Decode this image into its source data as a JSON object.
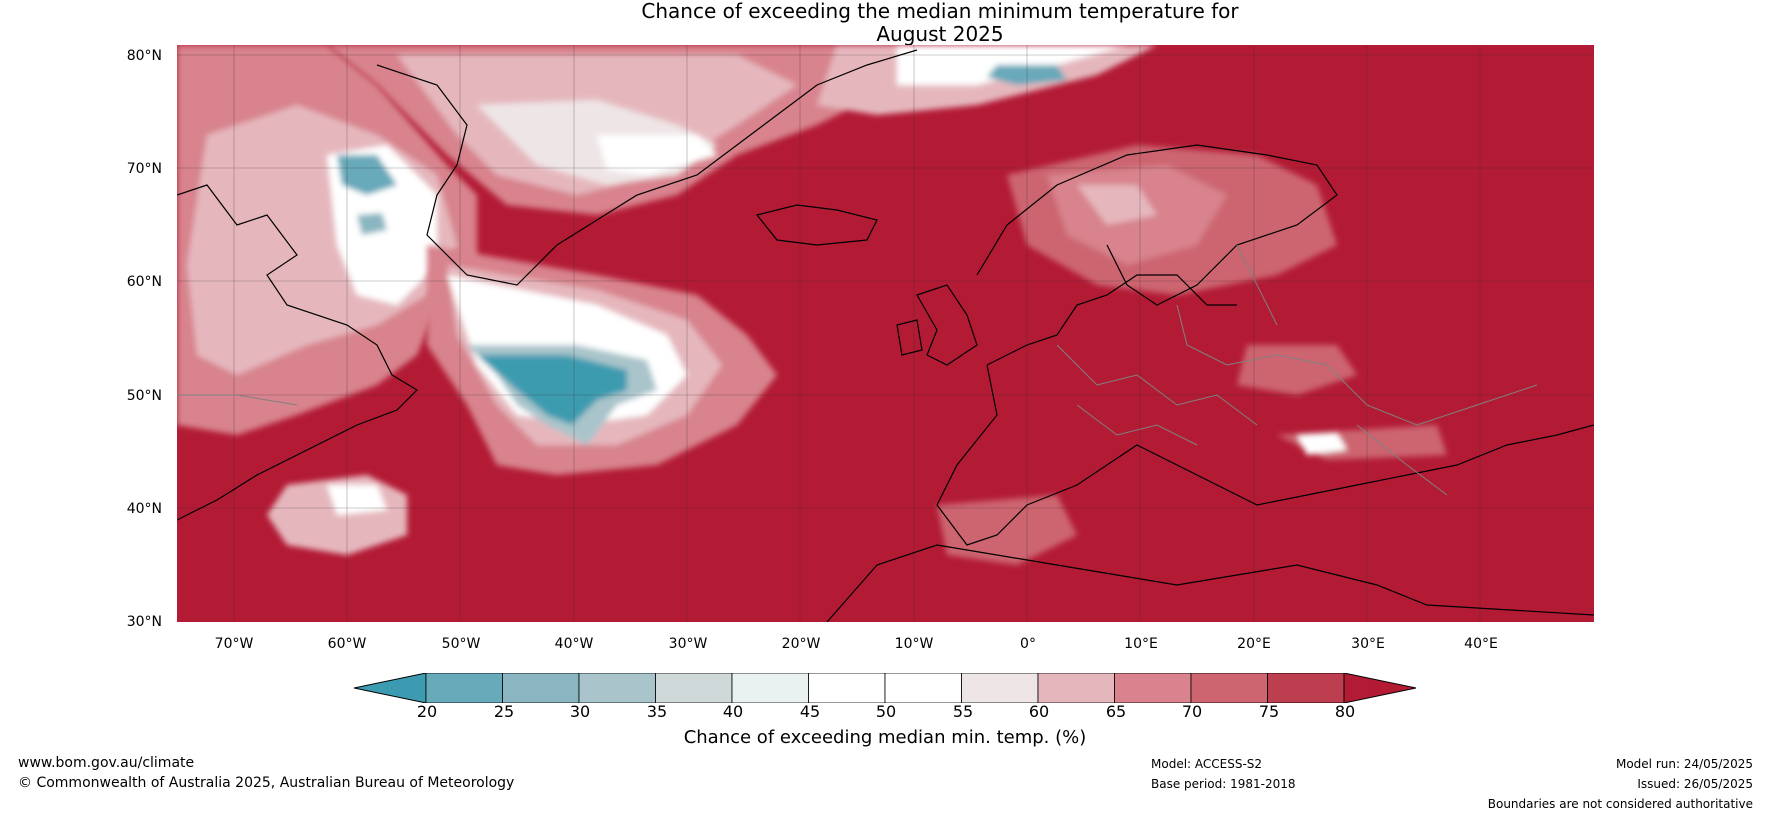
{
  "title": {
    "line1": "Chance of exceeding the median minimum temperature for",
    "line2": "August 2025"
  },
  "map": {
    "ocean_fill": "#b31b35",
    "lat_labels": [
      "80°N",
      "70°N",
      "60°N",
      "50°N",
      "40°N",
      "30°N"
    ],
    "lat_values": [
      80,
      70,
      60,
      50,
      40,
      30
    ],
    "lon_labels": [
      "70°W",
      "60°W",
      "50°W",
      "40°W",
      "30°W",
      "20°W",
      "10°W",
      "0°",
      "10°E",
      "20°E",
      "30°E",
      "40°E"
    ],
    "lon_values": [
      -70,
      -60,
      -50,
      -40,
      -30,
      -20,
      -10,
      0,
      10,
      20,
      30,
      40
    ],
    "extent": {
      "lon_min": -75,
      "lon_max": 50,
      "lat_min": 30,
      "lat_max": 81
    }
  },
  "colorbar": {
    "ticks": [
      "20",
      "25",
      "30",
      "35",
      "40",
      "45",
      "50",
      "55",
      "60",
      "65",
      "70",
      "75",
      "80"
    ],
    "colors": [
      "#3c9bb0",
      "#68a9ba",
      "#8ab6c2",
      "#a9c4cb",
      "#cfd9d9",
      "#e9f1f1",
      "#ffffff",
      "#ffffff",
      "#eee5e6",
      "#e5b7bd",
      "#d8838d",
      "#cc6570",
      "#bd3e4f"
    ],
    "under_color": "#3c9bb0",
    "over_color": "#b31b35",
    "label": "Chance of exceeding median min. temp. (%)"
  },
  "footer": {
    "url": "www.bom.gov.au/climate",
    "copyright": "© Commonwealth of Australia 2025, Australian Bureau of Meteorology",
    "model": "Model: ACCESS-S2",
    "base_period": "Base period: 1981-2018",
    "model_run": "Model run: 24/05/2025",
    "issued": "Issued: 26/05/2025",
    "disclaimer": "Boundaries are not considered authoritative"
  }
}
